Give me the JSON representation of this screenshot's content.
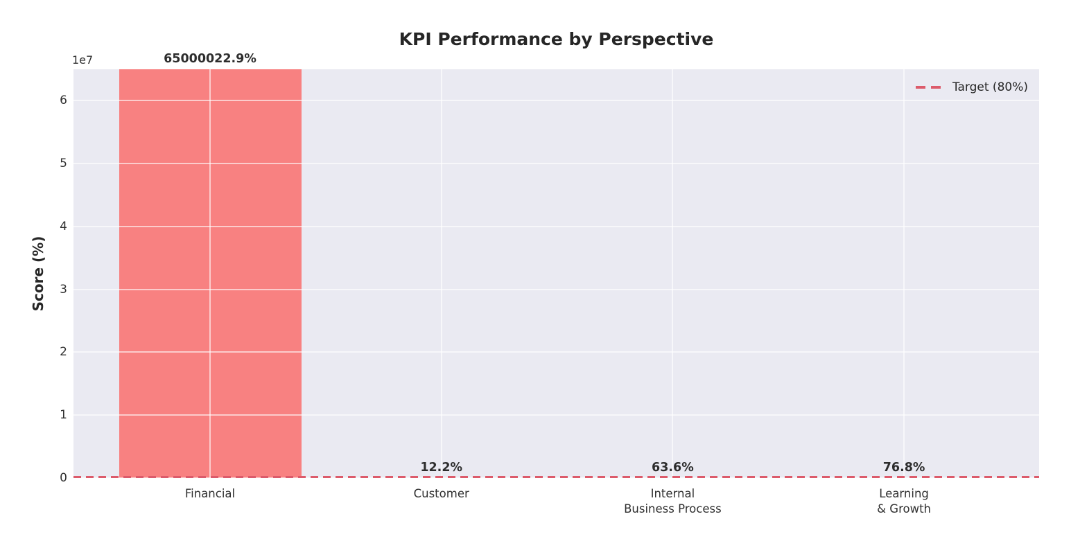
{
  "chart_data": {
    "type": "bar",
    "title": "KPI Performance by Perspective",
    "ylabel": "Score (%)",
    "xlabel": "",
    "offset_text": "1e7",
    "categories": [
      "Financial",
      "Customer",
      "Internal\nBusiness Process",
      "Learning\n& Growth"
    ],
    "values": [
      65000022.9,
      12.2,
      63.6,
      76.8
    ],
    "bar_labels": [
      "65000022.9%",
      "12.2%",
      "63.6%",
      "76.8%"
    ],
    "ylim": [
      0,
      65000022.9
    ],
    "ytick_values": [
      0,
      10000000,
      20000000,
      30000000,
      40000000,
      50000000,
      60000000
    ],
    "ytick_labels": [
      "0",
      "1",
      "2",
      "3",
      "4",
      "5",
      "6"
    ],
    "grid": true,
    "legend": {
      "label": "Target (80%)",
      "position": "upper right"
    },
    "target_line": {
      "value": 80,
      "style": "dashed",
      "color": "#dc5b6b"
    },
    "colors": {
      "bar": "#f88181",
      "plot_background": "#eaeaf2",
      "grid": "#ffffff",
      "target": "#dc5b6b",
      "text": "#262626"
    }
  }
}
